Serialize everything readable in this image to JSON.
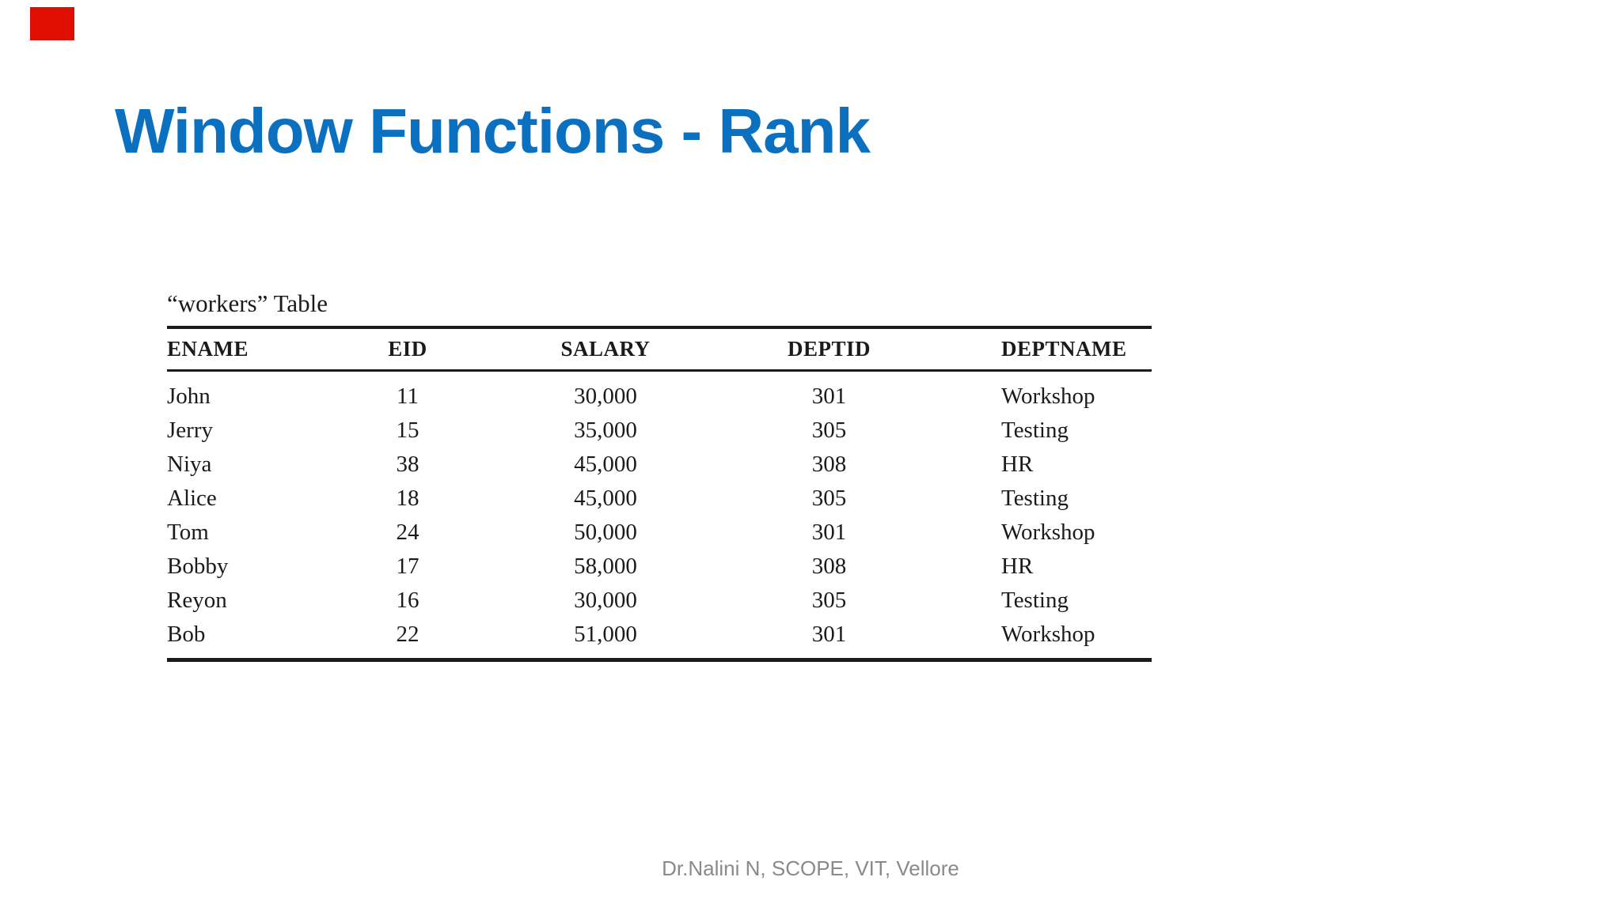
{
  "slide": {
    "title": "Window Functions - Rank",
    "title_color": "#0b70c0",
    "accent_color": "#e00e00",
    "footer": "Dr.Nalini N, SCOPE, VIT, Vellore"
  },
  "table": {
    "caption": "“workers” Table",
    "columns": [
      {
        "label": "ENAME",
        "align": "left"
      },
      {
        "label": "EID",
        "align": "center"
      },
      {
        "label": "SALARY",
        "align": "center"
      },
      {
        "label": "DEPTID",
        "align": "center"
      },
      {
        "label": "DEPTNAME",
        "align": "left"
      }
    ],
    "rows": [
      [
        "John",
        "11",
        "30,000",
        "301",
        "Workshop"
      ],
      [
        "Jerry",
        "15",
        "35,000",
        "305",
        "Testing"
      ],
      [
        "Niya",
        "38",
        "45,000",
        "308",
        "HR"
      ],
      [
        "Alice",
        "18",
        "45,000",
        "305",
        "Testing"
      ],
      [
        "Tom",
        "24",
        "50,000",
        "301",
        "Workshop"
      ],
      [
        "Bobby",
        "17",
        "58,000",
        "308",
        "HR"
      ],
      [
        "Reyon",
        "16",
        "30,000",
        "305",
        "Testing"
      ],
      [
        "Bob",
        "22",
        "51,000",
        "301",
        "Workshop"
      ]
    ]
  }
}
